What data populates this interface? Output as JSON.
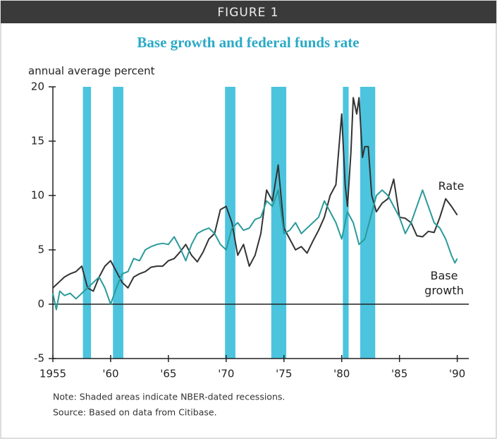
{
  "header": "FIGURE 1",
  "chart_data": {
    "type": "line",
    "title": "Base growth and federal funds rate",
    "y_label": "annual average percent",
    "xlim": [
      1955,
      1991
    ],
    "xticks": [
      {
        "value": 1955,
        "label": "1955"
      },
      {
        "value": 1960,
        "label": "'60"
      },
      {
        "value": 1965,
        "label": "'65"
      },
      {
        "value": 1970,
        "label": "'70"
      },
      {
        "value": 1975,
        "label": "'75"
      },
      {
        "value": 1980,
        "label": "'80"
      },
      {
        "value": 1985,
        "label": "'85"
      },
      {
        "value": 1990,
        "label": "'90"
      }
    ],
    "ylim": [
      -5,
      20
    ],
    "yticks": [
      -5,
      0,
      5,
      10,
      15,
      20
    ],
    "recessions": [
      [
        1957.6,
        1958.3
      ],
      [
        1960.2,
        1961.1
      ],
      [
        1969.9,
        1970.8
      ],
      [
        1973.9,
        1975.2
      ],
      [
        1980.1,
        1980.6
      ],
      [
        1981.6,
        1982.9
      ]
    ],
    "recession_color": "#4cc4de",
    "series": [
      {
        "name": "Rate",
        "color": "#333333",
        "x": [
          1955,
          1955.5,
          1956,
          1956.5,
          1957,
          1957.5,
          1958,
          1958.5,
          1959,
          1959.5,
          1960,
          1960.5,
          1961,
          1961.5,
          1962,
          1962.5,
          1963,
          1963.5,
          1964,
          1964.5,
          1965,
          1965.5,
          1966,
          1966.5,
          1967,
          1967.5,
          1968,
          1968.5,
          1969,
          1969.5,
          1970,
          1970.5,
          1971,
          1971.5,
          1972,
          1972.5,
          1973,
          1973.5,
          1974,
          1974.5,
          1975,
          1975.5,
          1976,
          1976.5,
          1977,
          1977.5,
          1978,
          1978.5,
          1979,
          1979.5,
          1980,
          1980.3,
          1980.5,
          1980.8,
          1981,
          1981.3,
          1981.5,
          1981.8,
          1982,
          1982.3,
          1982.6,
          1983,
          1983.5,
          1984,
          1984.5,
          1985,
          1985.5,
          1986,
          1986.5,
          1987,
          1987.5,
          1988,
          1988.5,
          1989,
          1989.5,
          1990
        ],
        "values": [
          1.5,
          2.0,
          2.5,
          2.8,
          3.0,
          3.5,
          1.5,
          1.2,
          2.5,
          3.5,
          4.0,
          3.0,
          2.0,
          1.5,
          2.5,
          2.8,
          3.0,
          3.4,
          3.5,
          3.5,
          4.0,
          4.2,
          4.8,
          5.5,
          4.5,
          3.9,
          4.8,
          6.0,
          6.5,
          8.7,
          9.0,
          7.5,
          4.5,
          5.5,
          3.5,
          4.5,
          6.5,
          10.5,
          9.5,
          12.8,
          7.0,
          6.0,
          5.0,
          5.3,
          4.7,
          5.8,
          6.8,
          8.0,
          10.0,
          11.0,
          17.5,
          11.0,
          9.0,
          14.0,
          19.0,
          17.5,
          19.0,
          13.5,
          14.5,
          14.5,
          10.0,
          8.5,
          9.3,
          9.7,
          11.5,
          8.0,
          7.9,
          7.5,
          6.3,
          6.2,
          6.7,
          6.6,
          8.0,
          9.7,
          9.0,
          8.2
        ]
      },
      {
        "name": "Base growth",
        "color": "#2a9a9a",
        "x": [
          1955,
          1955.3,
          1955.6,
          1956,
          1956.5,
          1957,
          1957.5,
          1958,
          1958.5,
          1959,
          1959.5,
          1960,
          1960.5,
          1961,
          1961.5,
          1962,
          1962.5,
          1963,
          1963.5,
          1964,
          1964.5,
          1965,
          1965.5,
          1966,
          1966.5,
          1967,
          1967.5,
          1968,
          1968.5,
          1969,
          1969.5,
          1970,
          1970.5,
          1971,
          1971.5,
          1972,
          1972.5,
          1973,
          1973.5,
          1974,
          1974.5,
          1975,
          1975.5,
          1976,
          1976.5,
          1977,
          1977.5,
          1978,
          1978.5,
          1979,
          1979.5,
          1980,
          1980.5,
          1981,
          1981.5,
          1982,
          1982.5,
          1983,
          1983.5,
          1984,
          1984.5,
          1985,
          1985.5,
          1986,
          1986.5,
          1987,
          1987.5,
          1988,
          1988.5,
          1989,
          1989.5,
          1989.8,
          1990
        ],
        "values": [
          1.0,
          -0.5,
          1.2,
          0.8,
          1.0,
          0.5,
          1.0,
          1.5,
          2.0,
          2.5,
          1.5,
          0.0,
          1.5,
          2.8,
          3.0,
          4.2,
          4.0,
          5.0,
          5.3,
          5.5,
          5.6,
          5.5,
          6.2,
          5.2,
          4.0,
          5.5,
          6.5,
          6.8,
          7.0,
          6.5,
          5.5,
          5.0,
          7.0,
          7.5,
          6.8,
          7.0,
          7.8,
          8.0,
          9.5,
          9.0,
          10.5,
          6.5,
          6.8,
          7.5,
          6.5,
          7.0,
          7.5,
          8.0,
          9.5,
          8.5,
          7.5,
          6.0,
          8.5,
          7.5,
          5.5,
          6.0,
          8.0,
          10.0,
          10.5,
          10.0,
          9.0,
          8.0,
          6.5,
          7.5,
          9.0,
          10.5,
          9.0,
          7.5,
          7.0,
          6.0,
          4.5,
          3.8,
          4.2
        ]
      }
    ],
    "notes": [
      "Note: Shaded areas indicate NBER-dated recessions.",
      "Source: Based on data from Citibase."
    ]
  }
}
